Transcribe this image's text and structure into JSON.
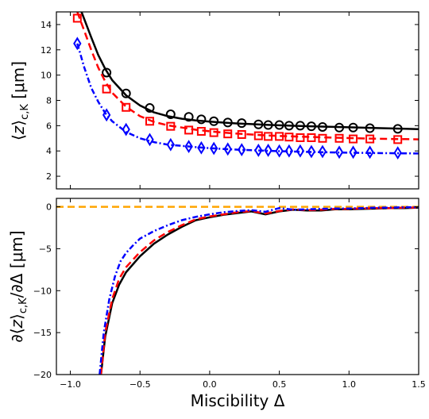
{
  "chart_data": [
    {
      "type": "line",
      "ylabel": "⟨z⟩c,K [μm]",
      "ylim": [
        1,
        15
      ],
      "xlim": [
        -1.1,
        1.5
      ],
      "yticks": [
        2,
        4,
        6,
        8,
        10,
        12,
        14
      ],
      "series": [
        {
          "color": "#000000",
          "dash": "solid",
          "marker": "circle",
          "curve_x": [
            -0.92,
            -0.85,
            -0.8,
            -0.75,
            -0.7,
            -0.6,
            -0.5,
            -0.4,
            -0.3,
            -0.2,
            -0.1,
            0.0,
            0.1,
            0.2,
            0.3,
            0.4,
            0.5,
            0.6,
            0.8,
            1.0,
            1.2,
            1.4,
            1.5
          ],
          "curve_y": [
            15.0,
            13.0,
            11.6,
            10.5,
            9.6,
            8.4,
            7.6,
            7.05,
            6.75,
            6.55,
            6.42,
            6.32,
            6.24,
            6.17,
            6.12,
            6.07,
            6.03,
            5.99,
            5.93,
            5.87,
            5.81,
            5.76,
            5.73
          ],
          "marker_x": [
            -0.74,
            -0.6,
            -0.43,
            -0.28,
            -0.15,
            -0.06,
            0.03,
            0.13,
            0.23,
            0.35,
            0.42,
            0.5,
            0.57,
            0.65,
            0.73,
            0.81,
            0.93,
            1.03,
            1.15,
            1.35
          ],
          "marker_y": [
            10.2,
            8.55,
            7.4,
            6.9,
            6.7,
            6.5,
            6.35,
            6.25,
            6.2,
            6.1,
            6.05,
            6.05,
            6.0,
            6.0,
            5.95,
            5.9,
            5.85,
            5.85,
            5.8,
            5.75
          ]
        },
        {
          "color": "#ff0000",
          "dash": "dashed",
          "marker": "square",
          "curve_x": [
            -0.95,
            -0.9,
            -0.85,
            -0.8,
            -0.75,
            -0.7,
            -0.6,
            -0.5,
            -0.4,
            -0.3,
            -0.2,
            -0.1,
            0.0,
            0.1,
            0.2,
            0.3,
            0.4,
            0.5,
            0.6,
            0.8,
            1.0,
            1.2,
            1.5
          ],
          "curve_y": [
            15.0,
            13.5,
            12.0,
            10.6,
            9.5,
            8.6,
            7.5,
            6.75,
            6.3,
            6.02,
            5.85,
            5.68,
            5.56,
            5.45,
            5.37,
            5.3,
            5.24,
            5.19,
            5.15,
            5.08,
            5.02,
            4.97,
            4.92
          ],
          "marker_x": [
            -0.95,
            -0.74,
            -0.6,
            -0.43,
            -0.28,
            -0.15,
            -0.06,
            0.03,
            0.13,
            0.23,
            0.35,
            0.42,
            0.5,
            0.57,
            0.65,
            0.73,
            0.81,
            0.93,
            1.03,
            1.15,
            1.35
          ],
          "marker_y": [
            14.5,
            8.9,
            7.45,
            6.35,
            5.95,
            5.65,
            5.55,
            5.45,
            5.35,
            5.3,
            5.2,
            5.15,
            5.15,
            5.1,
            5.05,
            5.05,
            5.0,
            5.0,
            4.95,
            4.95,
            4.9
          ]
        },
        {
          "color": "#0000ff",
          "dash": "dashdot",
          "marker": "diamond",
          "curve_x": [
            -0.95,
            -0.9,
            -0.85,
            -0.8,
            -0.75,
            -0.7,
            -0.6,
            -0.5,
            -0.4,
            -0.3,
            -0.2,
            -0.1,
            0.0,
            0.1,
            0.2,
            0.3,
            0.4,
            0.5,
            0.6,
            0.8,
            1.0,
            1.2,
            1.5
          ],
          "curve_y": [
            12.5,
            10.6,
            9.0,
            7.9,
            7.0,
            6.35,
            5.5,
            5.0,
            4.7,
            4.5,
            4.4,
            4.3,
            4.22,
            4.16,
            4.1,
            4.06,
            4.02,
            3.98,
            3.95,
            3.9,
            3.86,
            3.83,
            3.8
          ],
          "marker_x": [
            -0.95,
            -0.74,
            -0.6,
            -0.43,
            -0.28,
            -0.15,
            -0.06,
            0.03,
            0.13,
            0.23,
            0.35,
            0.42,
            0.5,
            0.57,
            0.65,
            0.73,
            0.81,
            0.93,
            1.03,
            1.15,
            1.35
          ],
          "marker_y": [
            12.5,
            6.85,
            5.7,
            4.9,
            4.5,
            4.35,
            4.25,
            4.2,
            4.15,
            4.1,
            4.05,
            4.05,
            4.0,
            4.0,
            4.0,
            3.95,
            3.95,
            3.9,
            3.9,
            3.9,
            3.85
          ]
        }
      ]
    },
    {
      "type": "line",
      "xlabel": "Miscibility Δ",
      "ylabel": "∂⟨z⟩c,K/∂Δ [μm]",
      "xlim": [
        -1.1,
        1.5
      ],
      "ylim": [
        -20,
        1
      ],
      "xticks": [
        -1.0,
        -0.5,
        0.0,
        0.5,
        1.0,
        1.5
      ],
      "xtick_labels": [
        "−1.0",
        "−0.5",
        "0.0",
        "0.5",
        "1.0",
        "1.5"
      ],
      "yticks": [
        0,
        -5,
        -10,
        -15,
        -20
      ],
      "ytick_labels": [
        "0",
        "−5",
        "−10",
        "−15",
        "−20"
      ],
      "series": [
        {
          "color": "#ffa500",
          "dash": "dashed",
          "x": [
            -1.1,
            1.5
          ],
          "y": [
            0,
            0
          ]
        },
        {
          "color": "#000000",
          "dash": "solid",
          "x": [
            -0.78,
            -0.75,
            -0.7,
            -0.65,
            -0.6,
            -0.5,
            -0.4,
            -0.3,
            -0.2,
            -0.1,
            0.0,
            0.1,
            0.2,
            0.3,
            0.4,
            0.5,
            0.6,
            0.7,
            0.8,
            0.9,
            1.0,
            1.1,
            1.2,
            1.3,
            1.4,
            1.5
          ],
          "y": [
            -20.0,
            -15.5,
            -11.5,
            -9.3,
            -7.8,
            -5.9,
            -4.4,
            -3.3,
            -2.4,
            -1.6,
            -1.25,
            -0.95,
            -0.75,
            -0.55,
            -0.9,
            -0.55,
            -0.35,
            -0.45,
            -0.45,
            -0.3,
            -0.3,
            -0.25,
            -0.2,
            -0.15,
            -0.15,
            -0.1
          ]
        },
        {
          "color": "#ff0000",
          "dash": "dashed",
          "x": [
            -0.78,
            -0.75,
            -0.7,
            -0.65,
            -0.6,
            -0.5,
            -0.4,
            -0.3,
            -0.2,
            -0.1,
            0.0,
            0.1,
            0.2,
            0.3,
            0.4,
            0.5,
            0.6,
            0.7,
            0.8,
            0.9,
            1.0,
            1.1,
            1.2,
            1.3,
            1.4,
            1.5
          ],
          "y": [
            -20.0,
            -15.0,
            -11.0,
            -8.6,
            -7.2,
            -5.4,
            -4.0,
            -3.0,
            -2.2,
            -1.5,
            -1.15,
            -0.9,
            -0.65,
            -0.5,
            -0.8,
            -0.5,
            -0.3,
            -0.4,
            -0.35,
            -0.25,
            -0.25,
            -0.2,
            -0.15,
            -0.15,
            -0.1,
            -0.1
          ]
        },
        {
          "color": "#0000ff",
          "dash": "dashdot",
          "x": [
            -0.79,
            -0.76,
            -0.72,
            -0.68,
            -0.64,
            -0.6,
            -0.55,
            -0.5,
            -0.4,
            -0.3,
            -0.2,
            -0.1,
            0.0,
            0.1,
            0.2,
            0.3,
            0.4,
            0.5,
            0.6,
            0.7,
            0.8,
            0.9,
            1.0,
            1.1,
            1.2,
            1.3,
            1.4,
            1.5
          ],
          "y": [
            -20.0,
            -15.0,
            -11.0,
            -8.3,
            -6.5,
            -5.5,
            -4.6,
            -3.8,
            -2.9,
            -2.2,
            -1.6,
            -1.2,
            -0.9,
            -0.65,
            -0.5,
            -0.4,
            -0.6,
            -0.15,
            -0.35,
            -0.3,
            -0.25,
            -0.2,
            -0.2,
            -0.15,
            -0.1,
            -0.1,
            -0.05,
            -0.05
          ]
        }
      ]
    }
  ]
}
